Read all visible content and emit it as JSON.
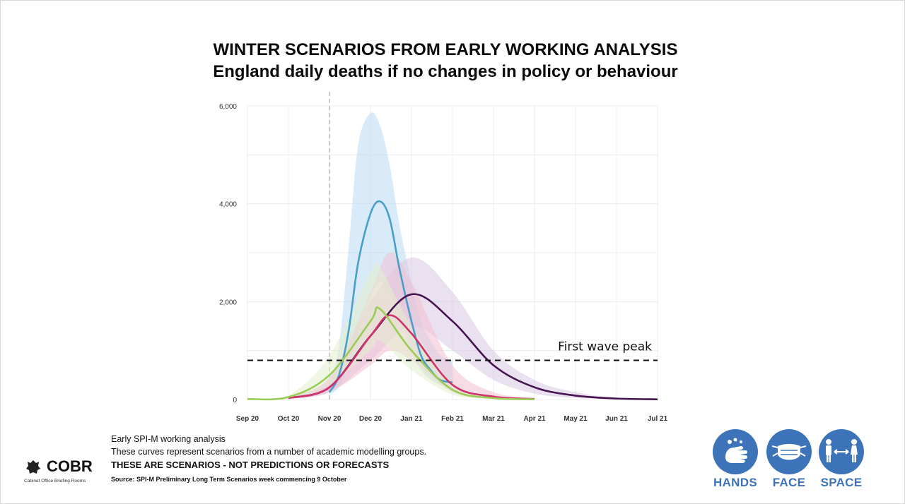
{
  "header": {
    "title": "WINTER SCENARIOS FROM EARLY WORKING ANALYSIS",
    "subtitle": "England daily deaths if no changes in policy or behaviour"
  },
  "chart_data": {
    "type": "line",
    "x_tick_labels": [
      "Sep 20",
      "Oct 20",
      "Nov 20",
      "Dec 20",
      "Jan 21",
      "Feb 21",
      "Mar 21",
      "Apr 21",
      "May 21",
      "Jun 21",
      "Jul 21"
    ],
    "y_tick_labels": [
      "0",
      "2,000",
      "4,000",
      "6,000"
    ],
    "ylim": [
      0,
      6000
    ],
    "grid": true,
    "reference_line": {
      "label": "First wave peak",
      "value": 800
    },
    "marker_line": {
      "at": "Nov 20",
      "style": "dashed"
    },
    "series": [
      {
        "color": "#4a9fc9",
        "band_color": "#b9dbf2",
        "x": [
          "Nov 20",
          "Nov 20+7",
          "Nov 20+14",
          "Nov 20+21",
          "Dec 20",
          "Dec 20+7",
          "Dec 20+14",
          "Dec 20+21",
          "Jan 21",
          "Jan 21+7",
          "Jan 21+14",
          "Jan 21+21",
          "Feb 21"
        ],
        "values": [
          150,
          500,
          1400,
          2800,
          3800,
          4050,
          3700,
          2700,
          1600,
          900,
          600,
          400,
          350
        ],
        "upper": [
          300,
          1100,
          3100,
          5200,
          5850,
          5600,
          4800,
          3600,
          2400,
          1600,
          1200,
          900,
          800
        ],
        "lower": [
          100,
          250,
          700,
          1400,
          2100,
          2400,
          2200,
          1700,
          1000,
          600,
          400,
          300,
          250
        ]
      },
      {
        "color": "#45154f",
        "band_color": "#d8c8e3",
        "x": [
          "Oct 20",
          "Nov 20",
          "Dec 20",
          "Jan 21",
          "Feb 21",
          "Mar 21",
          "Apr 21",
          "May 21",
          "Jun 21",
          "Jul 21"
        ],
        "values": [
          30,
          250,
          1300,
          2150,
          1600,
          700,
          250,
          80,
          20,
          5
        ],
        "upper": [
          60,
          450,
          2000,
          2900,
          2200,
          1000,
          400,
          150,
          40,
          10
        ],
        "lower": [
          15,
          150,
          800,
          1500,
          1000,
          400,
          120,
          30,
          10,
          2
        ]
      },
      {
        "color": "#d0326e",
        "band_color": "#f1bfd2",
        "x": [
          "Oct 20",
          "Nov 20",
          "Dec 20",
          "Dec 20+14",
          "Jan 21",
          "Feb 21",
          "Mar 21",
          "Apr 21"
        ],
        "values": [
          30,
          250,
          1300,
          1720,
          1350,
          300,
          60,
          10
        ],
        "upper": [
          60,
          450,
          2200,
          3000,
          2400,
          700,
          150,
          30
        ],
        "lower": [
          15,
          150,
          700,
          1000,
          800,
          150,
          30,
          5
        ]
      },
      {
        "color": "#9bcc57",
        "band_color": "#e3efcd",
        "x": [
          "Sep 20",
          "Oct 20",
          "Nov 20",
          "Dec 20",
          "Dec 20+7",
          "Jan 21",
          "Feb 21",
          "Mar 21",
          "Apr 21"
        ],
        "values": [
          10,
          50,
          500,
          1600,
          1850,
          1000,
          200,
          30,
          5
        ],
        "upper": [
          20,
          90,
          900,
          2600,
          2700,
          1500,
          350,
          60,
          10
        ],
        "lower": [
          5,
          25,
          300,
          1000,
          1200,
          600,
          100,
          15,
          2
        ]
      }
    ]
  },
  "footer": {
    "note1": "Early SPI-M working analysis",
    "note2": "These curves represent scenarios from a number of academic modelling groups.",
    "note3": "THESE ARE SCENARIOS  - NOT PREDICTIONS OR FORECASTS",
    "source": "Source: SPI-M Preliminary Long Term Scenarios week commencing 9 October"
  },
  "logo": {
    "word": "COBR",
    "sub": "Cabinet Office Briefing Rooms"
  },
  "badges": {
    "hands": "HANDS",
    "face": "FACE",
    "space": "SPACE"
  },
  "colors": {
    "badge": "#3d73b9"
  }
}
